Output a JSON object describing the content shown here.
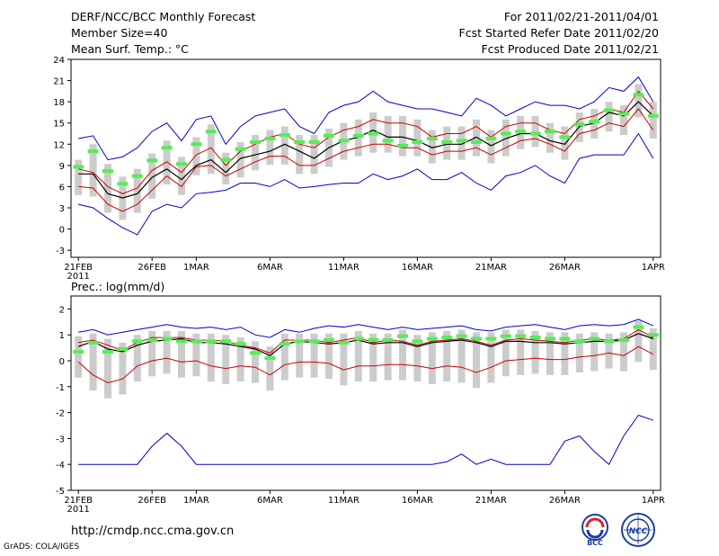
{
  "header": {
    "title": "DERF/NCC/BCC Monthly Forecast",
    "member_size": "Member Size=40",
    "variable": "Mean Surf. Temp.: °C",
    "for_period": "For 2011/02/21-2011/04/01",
    "fcst_started": "Fcst Started Refer Date 2011/02/20",
    "fcst_produced": "Fcst Produced Date 2011/02/21"
  },
  "footer": {
    "url": "http://cmdp.ncc.cma.gov.cn",
    "grads_credit": "GrADS: COLA/IGES",
    "logo_bcc": "BCC",
    "logo_ncc": "NCC"
  },
  "x_axis": {
    "ticks": [
      {
        "label": "21FEB",
        "day": 0
      },
      {
        "label": "26FEB",
        "day": 5
      },
      {
        "label": "1MAR",
        "day": 8
      },
      {
        "label": "6MAR",
        "day": 13
      },
      {
        "label": "11MAR",
        "day": 18
      },
      {
        "label": "16MAR",
        "day": 23
      },
      {
        "label": "21MAR",
        "day": 28
      },
      {
        "label": "26MAR",
        "day": 33
      },
      {
        "label": "1APR",
        "day": 39
      }
    ],
    "year_label": "2011"
  },
  "colors": {
    "envelope": "#0000cc",
    "spread": "#cc0000",
    "mean": "#000000",
    "obs": "#55ee55",
    "box": "#cccccc"
  },
  "chart_data": [
    {
      "type": "line",
      "title": "Mean Surf. Temp.: °C",
      "ylabel": "°C",
      "ylim": [
        -4,
        24
      ],
      "yticks": [
        -3,
        0,
        3,
        6,
        9,
        12,
        15,
        18,
        21,
        24
      ],
      "x_days": [
        0,
        1,
        2,
        3,
        4,
        5,
        6,
        7,
        8,
        9,
        10,
        11,
        12,
        13,
        14,
        15,
        16,
        17,
        18,
        19,
        20,
        21,
        22,
        23,
        24,
        25,
        26,
        27,
        28,
        29,
        30,
        31,
        32,
        33,
        34,
        35,
        36,
        37,
        38,
        39
      ],
      "series": [
        {
          "name": "max",
          "values": [
            12.8,
            13.2,
            9.8,
            10.2,
            11.5,
            13.8,
            15.0,
            12.5,
            15.5,
            16.0,
            12.0,
            14.5,
            16.0,
            16.5,
            17.0,
            14.5,
            13.5,
            16.5,
            17.5,
            18.0,
            19.5,
            18.0,
            17.5,
            17.0,
            17.0,
            16.5,
            16.0,
            18.5,
            17.5,
            16.0,
            17.0,
            18.0,
            17.5,
            17.5,
            17.0,
            18.0,
            20.0,
            19.5,
            21.5,
            18.0
          ]
        },
        {
          "name": "upper",
          "values": [
            8.5,
            8.0,
            6.0,
            5.0,
            5.8,
            8.3,
            9.5,
            8.0,
            10.5,
            11.5,
            9.0,
            11.0,
            12.0,
            13.0,
            13.5,
            12.0,
            11.5,
            13.0,
            14.0,
            14.5,
            15.5,
            15.0,
            15.0,
            14.5,
            13.0,
            13.5,
            13.5,
            14.5,
            13.0,
            14.5,
            15.0,
            15.0,
            14.0,
            13.5,
            15.5,
            16.0,
            17.0,
            16.5,
            19.5,
            17.0
          ]
        },
        {
          "name": "mean",
          "values": [
            7.8,
            7.8,
            5.0,
            4.4,
            5.0,
            7.3,
            8.5,
            7.0,
            9.0,
            9.8,
            8.0,
            10.0,
            10.5,
            11.0,
            12.0,
            11.0,
            10.0,
            11.5,
            12.5,
            13.0,
            14.0,
            13.0,
            13.0,
            12.5,
            11.5,
            12.0,
            12.0,
            13.0,
            11.8,
            12.8,
            13.5,
            13.5,
            12.5,
            12.0,
            14.5,
            15.0,
            16.5,
            16.0,
            18.0,
            16.0
          ]
        },
        {
          "name": "lower",
          "values": [
            6.0,
            5.8,
            3.5,
            2.5,
            3.5,
            5.5,
            7.5,
            6.0,
            8.8,
            9.0,
            7.5,
            8.5,
            9.5,
            10.3,
            10.3,
            9.0,
            9.0,
            10.0,
            11.0,
            11.5,
            12.0,
            12.0,
            11.5,
            11.5,
            10.5,
            11.0,
            11.0,
            11.5,
            10.5,
            11.5,
            12.5,
            12.8,
            12.0,
            11.0,
            13.5,
            14.0,
            15.0,
            14.5,
            17.0,
            14.0
          ]
        },
        {
          "name": "min",
          "values": [
            3.5,
            3.0,
            1.5,
            0.2,
            -0.8,
            2.5,
            3.5,
            3.0,
            5.0,
            5.2,
            5.5,
            6.5,
            6.5,
            6.0,
            7.0,
            5.8,
            6.0,
            6.3,
            6.5,
            6.5,
            7.8,
            7.0,
            7.5,
            8.5,
            7.0,
            7.0,
            8.0,
            6.5,
            5.5,
            7.5,
            8.0,
            9.0,
            7.5,
            6.5,
            10.0,
            10.5,
            10.5,
            10.5,
            13.5,
            10.0
          ]
        },
        {
          "name": "observed",
          "values": [
            8.8,
            11.0,
            8.2,
            6.4,
            7.5,
            9.7,
            11.5,
            9.2,
            12.0,
            13.8,
            9.8,
            11.3,
            12.3,
            12.8,
            13.3,
            12.3,
            12.3,
            13.2,
            12.5,
            13.2,
            13.5,
            12.5,
            11.8,
            12.3,
            12.8,
            12.3,
            12.5,
            12.3,
            12.8,
            13.5,
            13.8,
            13.5,
            13.8,
            13.0,
            14.8,
            15.2,
            16.8,
            16.3,
            19.0,
            16.0
          ]
        }
      ]
    },
    {
      "type": "line",
      "title": "Prec.: log(mm/d)",
      "ylabel": "log(mm/d)",
      "ylim": [
        -5,
        2.5
      ],
      "yticks": [
        -5,
        -4,
        -3,
        -2,
        -1,
        0,
        1,
        2
      ],
      "x_days": [
        0,
        1,
        2,
        3,
        4,
        5,
        6,
        7,
        8,
        9,
        10,
        11,
        12,
        13,
        14,
        15,
        16,
        17,
        18,
        19,
        20,
        21,
        22,
        23,
        24,
        25,
        26,
        27,
        28,
        29,
        30,
        31,
        32,
        33,
        34,
        35,
        36,
        37,
        38,
        39
      ],
      "series": [
        {
          "name": "max",
          "values": [
            1.1,
            1.2,
            1.0,
            1.1,
            1.2,
            1.3,
            1.4,
            1.3,
            1.25,
            1.3,
            1.2,
            1.3,
            1.0,
            0.9,
            1.2,
            1.1,
            1.25,
            1.35,
            1.3,
            1.4,
            1.3,
            1.2,
            1.3,
            1.2,
            1.25,
            1.3,
            1.35,
            1.2,
            1.15,
            1.3,
            1.35,
            1.4,
            1.3,
            1.2,
            1.35,
            1.4,
            1.35,
            1.4,
            1.6,
            1.35
          ]
        },
        {
          "name": "upper",
          "values": [
            0.7,
            0.8,
            0.6,
            0.4,
            0.7,
            0.9,
            0.9,
            0.9,
            0.8,
            0.8,
            0.75,
            0.6,
            0.5,
            0.3,
            0.8,
            0.8,
            0.8,
            0.7,
            0.8,
            0.9,
            0.7,
            0.8,
            0.75,
            0.6,
            0.75,
            0.8,
            0.85,
            0.75,
            0.6,
            0.8,
            0.85,
            0.8,
            0.75,
            0.7,
            0.8,
            0.85,
            0.8,
            0.85,
            1.2,
            0.9
          ]
        },
        {
          "name": "mean",
          "values": [
            0.55,
            0.75,
            0.45,
            0.35,
            0.6,
            0.75,
            0.8,
            0.85,
            0.7,
            0.7,
            0.65,
            0.55,
            0.45,
            0.2,
            0.65,
            0.75,
            0.7,
            0.65,
            0.7,
            0.8,
            0.65,
            0.7,
            0.7,
            0.55,
            0.7,
            0.75,
            0.8,
            0.7,
            0.55,
            0.75,
            0.75,
            0.7,
            0.7,
            0.65,
            0.7,
            0.75,
            0.75,
            0.8,
            1.05,
            0.85
          ]
        },
        {
          "name": "lower",
          "values": [
            -0.05,
            -0.55,
            -0.85,
            -0.7,
            -0.2,
            0.0,
            0.1,
            -0.05,
            0.0,
            -0.2,
            -0.3,
            -0.2,
            -0.25,
            -0.55,
            -0.15,
            -0.05,
            -0.05,
            -0.1,
            -0.35,
            -0.2,
            -0.2,
            -0.15,
            -0.15,
            -0.2,
            -0.3,
            -0.2,
            -0.25,
            -0.45,
            -0.25,
            0.0,
            0.05,
            0.1,
            0.05,
            0.05,
            0.15,
            0.2,
            0.3,
            0.2,
            0.55,
            0.25
          ]
        },
        {
          "name": "min",
          "values": [
            -4.0,
            -4.0,
            -4.0,
            -4.0,
            -4.0,
            -3.3,
            -2.8,
            -3.3,
            -4.0,
            -4.0,
            -4.0,
            -4.0,
            -4.0,
            -4.0,
            -4.0,
            -4.0,
            -4.0,
            -4.0,
            -4.0,
            -4.0,
            -4.0,
            -4.0,
            -4.0,
            -4.0,
            -4.0,
            -3.9,
            -3.6,
            -4.0,
            -3.8,
            -4.0,
            -4.0,
            -4.0,
            -4.0,
            -3.1,
            -2.9,
            -3.5,
            -4.0,
            -2.9,
            -2.1,
            -2.3
          ]
        },
        {
          "name": "observed",
          "values": [
            0.35,
            0.7,
            0.35,
            0.45,
            0.75,
            0.8,
            0.85,
            0.75,
            0.75,
            0.75,
            0.75,
            0.65,
            0.3,
            0.1,
            0.65,
            0.75,
            0.75,
            0.8,
            0.7,
            0.85,
            0.8,
            0.8,
            0.95,
            0.75,
            0.85,
            0.9,
            0.95,
            0.85,
            0.85,
            0.95,
            0.95,
            0.9,
            0.85,
            0.85,
            0.75,
            0.85,
            0.75,
            0.8,
            1.3,
            1.0
          ]
        }
      ]
    }
  ]
}
